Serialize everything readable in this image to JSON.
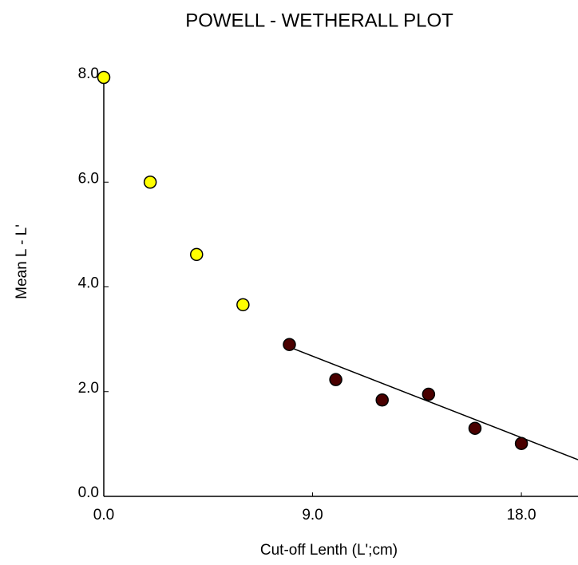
{
  "chart_data": {
    "type": "scatter",
    "title": "POWELL - WETHERALL PLOT",
    "x_label": "Cut-off Lenth (L';cm)",
    "y_label": "Mean L - L'",
    "xlim": [
      0,
      20.44
    ],
    "ylim": [
      0,
      8
    ],
    "xticks": [
      {
        "value": 0,
        "label": "0.0"
      },
      {
        "value": 9,
        "label": "9.0"
      },
      {
        "value": 18,
        "label": "18.0"
      }
    ],
    "yticks": [
      {
        "value": 0,
        "label": "0.0"
      },
      {
        "value": 2,
        "label": "2.0"
      },
      {
        "value": 4,
        "label": "4.0"
      },
      {
        "value": 6,
        "label": "6.0"
      },
      {
        "value": 8,
        "label": "8.0"
      }
    ],
    "series": [
      {
        "type": "scatter",
        "color": "#ffff00",
        "x": [
          0,
          2,
          4,
          6
        ],
        "values": [
          8.0,
          6.0,
          4.62,
          3.66
        ]
      },
      {
        "type": "scatter",
        "color": "#4a0000",
        "x": [
          8,
          10,
          12,
          14,
          16,
          18
        ],
        "values": [
          2.9,
          2.23,
          1.84,
          1.95,
          1.3,
          1.01
        ]
      },
      {
        "type": "line",
        "color": "#000000",
        "x": [
          8,
          20.44
        ],
        "values": [
          2.85,
          0.7
        ]
      }
    ]
  }
}
